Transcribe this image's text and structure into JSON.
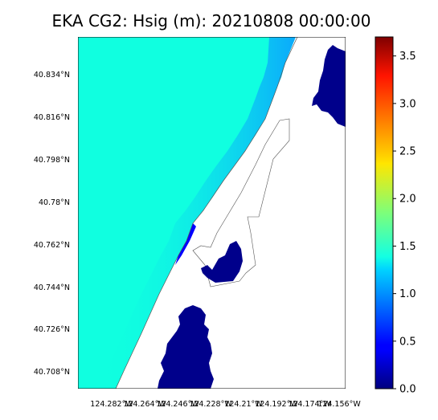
{
  "chart_data": {
    "type": "heatmap",
    "title": "EKA CG2: Hsig (m): 20210808 00:00:00",
    "xlabel": "",
    "ylabel": "",
    "x_tick_labels": [
      "124.282°W",
      "124.264°W",
      "124.246°W",
      "124.228°W",
      "124.21°W",
      "124.192°W",
      "124.174°W",
      "124.156°W"
    ],
    "x_ticks": [
      -124.282,
      -124.264,
      -124.246,
      -124.228,
      -124.21,
      -124.192,
      -124.174,
      -124.156
    ],
    "y_tick_labels": [
      "40.834°N",
      "40.816°N",
      "40.798°N",
      "40.78°N",
      "40.762°N",
      "40.744°N",
      "40.726°N",
      "40.708°N"
    ],
    "y_ticks": [
      40.834,
      40.816,
      40.798,
      40.78,
      40.762,
      40.744,
      40.726,
      40.708
    ],
    "xlim": [
      -124.3,
      -124.155
    ],
    "ylim": [
      40.7027,
      40.8467
    ],
    "colorbar": {
      "colormap": "jet",
      "range": [
        0.0,
        3.7
      ],
      "ticks": [
        0.0,
        0.5,
        1.0,
        1.5,
        2.0,
        2.5,
        3.0,
        3.5
      ],
      "tick_labels": [
        "0.0",
        "0.5",
        "1.0",
        "1.5",
        "2.0",
        "2.5",
        "3.0",
        "3.5"
      ]
    },
    "field": {
      "offshore_value_m": 1.45,
      "nearshore_value_m": 1.0,
      "bay_value_m": 0.0,
      "land_value": "no data"
    },
    "grid": false,
    "legend": "none"
  }
}
